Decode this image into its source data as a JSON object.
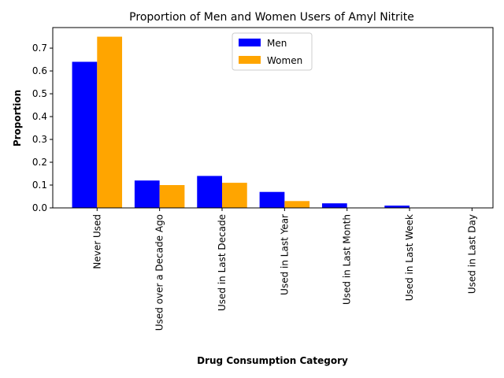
{
  "chart_data": {
    "type": "bar",
    "title": "Proportion of Men and Women Users of Amyl Nitrite",
    "xlabel": "Drug Consumption Category",
    "ylabel": "Proportion",
    "categories": [
      "Never Used",
      "Used over a Decade Ago",
      "Used in Last Decade",
      "Used in Last Year",
      "Used in Last Month",
      "Used in Last Week",
      "Used in Last Day"
    ],
    "series": [
      {
        "name": "Men",
        "color": "#0000ff",
        "values": [
          0.64,
          0.12,
          0.14,
          0.07,
          0.02,
          0.01,
          0.0
        ]
      },
      {
        "name": "Women",
        "color": "#ffa500",
        "values": [
          0.75,
          0.1,
          0.11,
          0.03,
          0.0,
          0.0,
          0.0
        ]
      }
    ],
    "ylim": [
      0,
      0.79
    ],
    "yticks": [
      "0.0",
      "0.1",
      "0.2",
      "0.3",
      "0.4",
      "0.5",
      "0.6",
      "0.7"
    ],
    "legend": "upper center",
    "grid": false
  }
}
